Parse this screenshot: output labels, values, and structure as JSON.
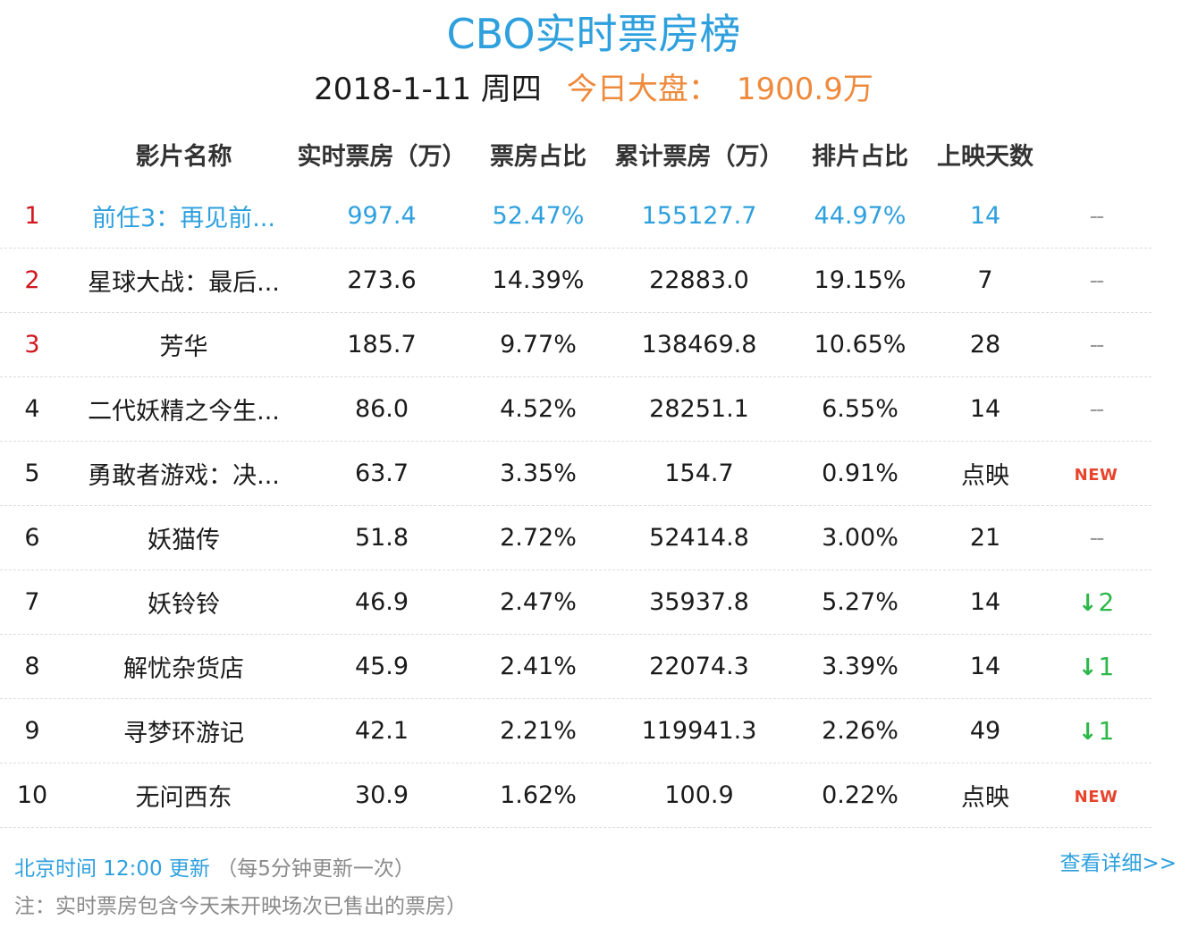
{
  "title": "CBO实时票房榜",
  "subtitle": {
    "date": "2018-1-11 周四",
    "market_label": "今日大盘：",
    "market_value": "1900.9万"
  },
  "headers": {
    "name": "影片名称",
    "realtime": "实时票房（万）",
    "share": "票房占比",
    "total": "累计票房（万）",
    "schedule": "排片占比",
    "days": "上映天数"
  },
  "rows": [
    {
      "rank": "1",
      "name": "前任3：再见前...",
      "realtime": "997.4",
      "share": "52.47%",
      "total": "155127.7",
      "schedule": "44.97%",
      "days": "14",
      "trend": "--",
      "trend_type": "dash"
    },
    {
      "rank": "2",
      "name": "星球大战：最后...",
      "realtime": "273.6",
      "share": "14.39%",
      "total": "22883.0",
      "schedule": "19.15%",
      "days": "7",
      "trend": "--",
      "trend_type": "dash"
    },
    {
      "rank": "3",
      "name": "芳华",
      "realtime": "185.7",
      "share": "9.77%",
      "total": "138469.8",
      "schedule": "10.65%",
      "days": "28",
      "trend": "--",
      "trend_type": "dash"
    },
    {
      "rank": "4",
      "name": "二代妖精之今生...",
      "realtime": "86.0",
      "share": "4.52%",
      "total": "28251.1",
      "schedule": "6.55%",
      "days": "14",
      "trend": "--",
      "trend_type": "dash"
    },
    {
      "rank": "5",
      "name": "勇敢者游戏：决...",
      "realtime": "63.7",
      "share": "3.35%",
      "total": "154.7",
      "schedule": "0.91%",
      "days": "点映",
      "trend": "NEW",
      "trend_type": "new"
    },
    {
      "rank": "6",
      "name": "妖猫传",
      "realtime": "51.8",
      "share": "2.72%",
      "total": "52414.8",
      "schedule": "3.00%",
      "days": "21",
      "trend": "--",
      "trend_type": "dash"
    },
    {
      "rank": "7",
      "name": "妖铃铃",
      "realtime": "46.9",
      "share": "2.47%",
      "total": "35937.8",
      "schedule": "5.27%",
      "days": "14",
      "trend": "2",
      "trend_type": "down"
    },
    {
      "rank": "8",
      "name": "解忧杂货店",
      "realtime": "45.9",
      "share": "2.41%",
      "total": "22074.3",
      "schedule": "3.39%",
      "days": "14",
      "trend": "1",
      "trend_type": "down"
    },
    {
      "rank": "9",
      "name": "寻梦环游记",
      "realtime": "42.1",
      "share": "2.21%",
      "total": "119941.3",
      "schedule": "2.26%",
      "days": "49",
      "trend": "1",
      "trend_type": "down"
    },
    {
      "rank": "10",
      "name": "无问西东",
      "realtime": "30.9",
      "share": "1.62%",
      "total": "100.9",
      "schedule": "0.22%",
      "days": "点映",
      "trend": "NEW",
      "trend_type": "new"
    }
  ],
  "footer": {
    "update_time": "北京时间 12:00 更新",
    "update_freq": "（每5分钟更新一次）",
    "note": "注：实时票房包含今天未开映场次已售出的票房）",
    "detail_link": "查看详细>>"
  },
  "colors": {
    "accent_blue": "#2ea0de",
    "market_orange": "#ee8a3c",
    "rank_red": "#d0171e",
    "trend_green": "#2cb84a",
    "new_red": "#e8442c"
  }
}
